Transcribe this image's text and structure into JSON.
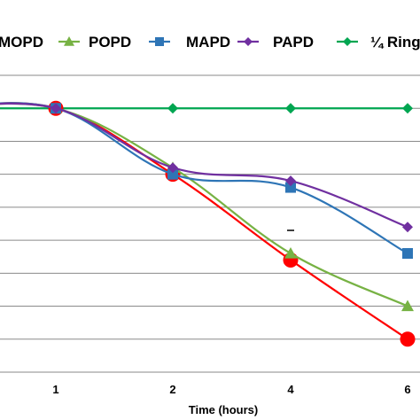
{
  "chart_data": {
    "type": "line",
    "title": "",
    "xlabel": "Time (hours)",
    "ylabel": "",
    "x": [
      0,
      1,
      2,
      4,
      6
    ],
    "x_tick_labels": [
      "1",
      "2",
      "4",
      "6"
    ],
    "y_gridlines": true,
    "legend_position": "top",
    "series": [
      {
        "name": "MOPD",
        "legend_label": "MOPD",
        "color": "#ff0000",
        "marker": "circle",
        "values": [
          100,
          100,
          90,
          77,
          65
        ]
      },
      {
        "name": "POPD",
        "legend_label": "POPD",
        "color": "#77b244",
        "marker": "triangle",
        "values": [
          100,
          100,
          91,
          78,
          70
        ]
      },
      {
        "name": "MAPD",
        "legend_label": "MAPD",
        "color": "#2e75b6",
        "marker": "square",
        "values": [
          100,
          100,
          90,
          88,
          78
        ]
      },
      {
        "name": "PAPD",
        "legend_label": "PAPD",
        "color": "#7030a0",
        "marker": "diamond",
        "values": [
          100,
          100,
          91,
          89,
          82
        ]
      },
      {
        "name": "¼ Ring",
        "legend_label": "¼ Ring",
        "color": "#00a651",
        "marker": "diamond",
        "values": [
          100,
          100,
          100,
          100,
          100
        ]
      }
    ]
  }
}
